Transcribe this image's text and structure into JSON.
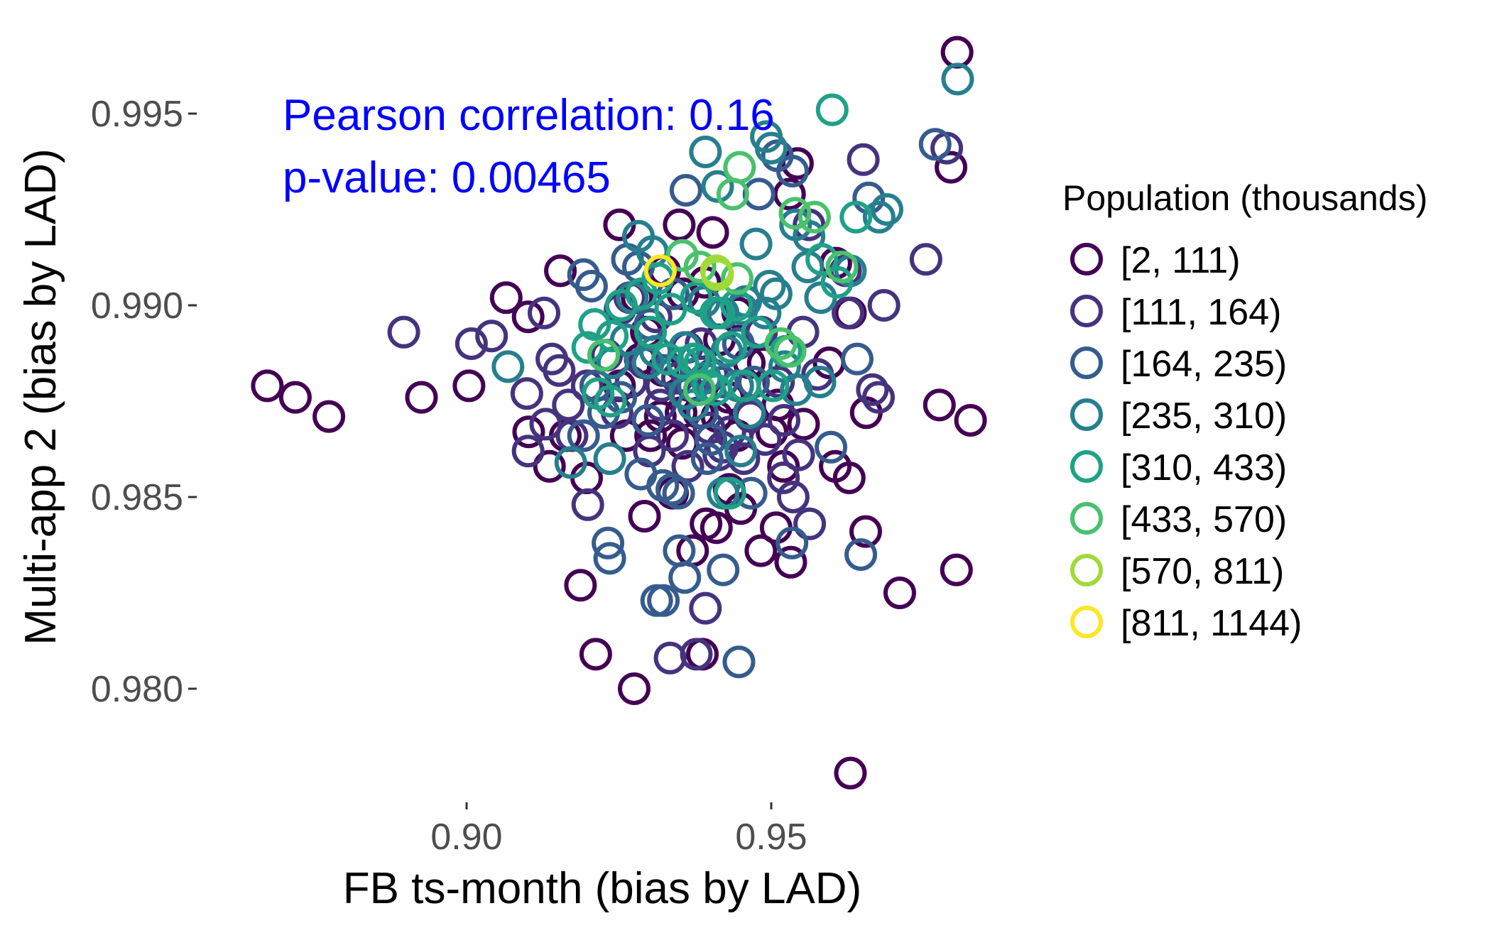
{
  "chart_data": {
    "type": "scatter",
    "title": "",
    "xlabel": "FB ts-month (bias by LAD)",
    "ylabel": "Multi-app 2 (bias by LAD)",
    "xlim": [
      0.862,
      0.988
    ],
    "ylim": [
      0.9765,
      0.9978
    ],
    "x_ticks": [
      0.9,
      0.95
    ],
    "x_tick_labels": [
      "0.90",
      "0.95"
    ],
    "y_ticks": [
      0.98,
      0.985,
      0.99,
      0.995
    ],
    "y_tick_labels": [
      "0.980",
      "0.985",
      "0.990",
      "0.995"
    ],
    "grid": false,
    "legend_position": "right",
    "annotation": {
      "line1": "Pearson correlation:  0.16",
      "line2": "p-value:  0.00465",
      "color": "#0000ff"
    },
    "legend": {
      "title": "Population (thousands)",
      "position": "right"
    },
    "series": [
      {
        "name": "[2, 111)",
        "color": "#440154",
        "points": [
          [
            0.9805,
            0.9966
          ],
          [
            0.9795,
            0.9936
          ],
          [
            0.8673,
            0.9879
          ],
          [
            0.8719,
            0.9876
          ],
          [
            0.8774,
            0.9871
          ],
          [
            0.8926,
            0.9876
          ],
          [
            0.9004,
            0.9879
          ],
          [
            0.9065,
            0.9902
          ],
          [
            0.9101,
            0.9897
          ],
          [
            0.9154,
            0.9909
          ],
          [
            0.9102,
            0.9867
          ],
          [
            0.9162,
            0.9866
          ],
          [
            0.9136,
            0.9858
          ],
          [
            0.9197,
            0.9855
          ],
          [
            0.9187,
            0.9827
          ],
          [
            0.9212,
            0.9809
          ],
          [
            0.9251,
            0.9921
          ],
          [
            0.9285,
            0.9886
          ],
          [
            0.9292,
            0.9845
          ],
          [
            0.9302,
            0.9866
          ],
          [
            0.9325,
            0.9909
          ],
          [
            0.9338,
            0.9851
          ],
          [
            0.9349,
            0.9921
          ],
          [
            0.9355,
            0.9903
          ],
          [
            0.9371,
            0.9879
          ],
          [
            0.9381,
            0.9872
          ],
          [
            0.9404,
            0.9919
          ],
          [
            0.9415,
            0.9891
          ],
          [
            0.9431,
            0.9852
          ],
          [
            0.9444,
            0.9866
          ],
          [
            0.945,
            0.9847
          ],
          [
            0.9393,
            0.9843
          ],
          [
            0.941,
            0.9842
          ],
          [
            0.9371,
            0.9836
          ],
          [
            0.9387,
            0.9809
          ],
          [
            0.9275,
            0.98
          ],
          [
            0.9483,
            0.9836
          ],
          [
            0.9508,
            0.9842
          ],
          [
            0.952,
            0.9858
          ],
          [
            0.9532,
            0.9833
          ],
          [
            0.9553,
            0.9869
          ],
          [
            0.9595,
            0.9885
          ],
          [
            0.9605,
            0.9858
          ],
          [
            0.9628,
            0.9855
          ],
          [
            0.963,
            0.9898
          ],
          [
            0.9606,
            0.9911
          ],
          [
            0.953,
            0.9929
          ],
          [
            0.9543,
            0.9937
          ],
          [
            0.9656,
            0.9872
          ],
          [
            0.9655,
            0.9841
          ],
          [
            0.9711,
            0.9825
          ],
          [
            0.9776,
            0.9874
          ],
          [
            0.9804,
            0.9831
          ],
          [
            0.9827,
            0.987
          ],
          [
            0.963,
            0.9778
          ],
          [
            0.9352,
            0.9872
          ],
          [
            0.9318,
            0.9871
          ],
          [
            0.9322,
            0.9883
          ],
          [
            0.9411,
            0.9871
          ],
          [
            0.943,
            0.9876
          ],
          [
            0.9464,
            0.9885
          ],
          [
            0.9501,
            0.9867
          ],
          [
            0.9511,
            0.9874
          ],
          [
            0.9251,
            0.9879
          ],
          [
            0.928,
            0.9902
          ],
          [
            0.9295,
            0.9893
          ],
          [
            0.9391,
            0.9906
          ],
          [
            0.9445,
            0.9898
          ],
          [
            0.9354,
            0.9864
          ],
          [
            0.9487,
            0.9885
          ],
          [
            0.9262,
            0.9866
          ]
        ]
      },
      {
        "name": "[111, 164)",
        "color": "#46337e",
        "points": [
          [
            0.9788,
            0.9941
          ],
          [
            0.9651,
            0.9938
          ],
          [
            0.9754,
            0.9912
          ],
          [
            0.9666,
            0.9878
          ],
          [
            0.9676,
            0.9876
          ],
          [
            0.9685,
            0.99
          ],
          [
            0.9562,
            0.9921
          ],
          [
            0.9622,
            0.9909
          ],
          [
            0.8897,
            0.9893
          ],
          [
            0.9008,
            0.989
          ],
          [
            0.9041,
            0.9892
          ],
          [
            0.9127,
            0.9898
          ],
          [
            0.914,
            0.9886
          ],
          [
            0.9152,
            0.9883
          ],
          [
            0.9167,
            0.9874
          ],
          [
            0.9198,
            0.9879
          ],
          [
            0.9099,
            0.9877
          ],
          [
            0.913,
            0.9869
          ],
          [
            0.9173,
            0.9866
          ],
          [
            0.9101,
            0.9862
          ],
          [
            0.9199,
            0.9848
          ],
          [
            0.923,
            0.9887
          ],
          [
            0.9252,
            0.9899
          ],
          [
            0.9268,
            0.9902
          ],
          [
            0.9291,
            0.9885
          ],
          [
            0.9311,
            0.9897
          ],
          [
            0.932,
            0.9879
          ],
          [
            0.9338,
            0.9866
          ],
          [
            0.9362,
            0.9889
          ],
          [
            0.9385,
            0.989
          ],
          [
            0.9398,
            0.9868
          ],
          [
            0.942,
            0.9863
          ],
          [
            0.9432,
            0.9867
          ],
          [
            0.9455,
            0.986
          ],
          [
            0.949,
            0.9865
          ],
          [
            0.952,
            0.9855
          ],
          [
            0.9536,
            0.985
          ],
          [
            0.9563,
            0.9843
          ],
          [
            0.9334,
            0.9808
          ],
          [
            0.9377,
            0.9809
          ],
          [
            0.9392,
            0.9821
          ],
          [
            0.9484,
            0.9893
          ],
          [
            0.9521,
            0.987
          ],
          [
            0.9545,
            0.9861
          ],
          [
            0.9576,
            0.9882
          ],
          [
            0.9626,
            0.9898
          ],
          [
            0.9247,
            0.9872
          ],
          [
            0.927,
            0.988
          ],
          [
            0.93,
            0.9862
          ],
          [
            0.9403,
            0.9882
          ],
          [
            0.9466,
            0.9871
          ],
          [
            0.9512,
            0.988
          ],
          [
            0.9552,
            0.9893
          ],
          [
            0.9318,
            0.9874
          ],
          [
            0.9346,
            0.9881
          ],
          [
            0.9363,
            0.9858
          ],
          [
            0.9414,
            0.9861
          ]
        ]
      },
      {
        "name": "[164, 235)",
        "color": "#365c8d",
        "points": [
          [
            0.9769,
            0.9942
          ],
          [
            0.966,
            0.9928
          ],
          [
            0.9535,
            0.9935
          ],
          [
            0.951,
            0.9939
          ],
          [
            0.948,
            0.9929
          ],
          [
            0.936,
            0.993
          ],
          [
            0.9264,
            0.9912
          ],
          [
            0.9205,
            0.9905
          ],
          [
            0.9192,
            0.9908
          ],
          [
            0.9282,
            0.991
          ],
          [
            0.9301,
            0.9895
          ],
          [
            0.9339,
            0.9903
          ],
          [
            0.9212,
            0.9879
          ],
          [
            0.9192,
            0.9866
          ],
          [
            0.9225,
            0.9872
          ],
          [
            0.9253,
            0.9876
          ],
          [
            0.9298,
            0.987
          ],
          [
            0.933,
            0.9883
          ],
          [
            0.9361,
            0.9877
          ],
          [
            0.9286,
            0.9856
          ],
          [
            0.9322,
            0.9853
          ],
          [
            0.9337,
            0.9852
          ],
          [
            0.9348,
            0.9851
          ],
          [
            0.9372,
            0.9879
          ],
          [
            0.9387,
            0.9872
          ],
          [
            0.942,
            0.988
          ],
          [
            0.9401,
            0.9865
          ],
          [
            0.9358,
            0.9829
          ],
          [
            0.9349,
            0.9836
          ],
          [
            0.9323,
            0.9823
          ],
          [
            0.9312,
            0.9823
          ],
          [
            0.9395,
            0.986
          ],
          [
            0.9421,
            0.9831
          ],
          [
            0.9447,
            0.9807
          ],
          [
            0.9232,
            0.9838
          ],
          [
            0.9235,
            0.9834
          ],
          [
            0.9534,
            0.9838
          ],
          [
            0.9598,
            0.9863
          ],
          [
            0.9647,
            0.9835
          ],
          [
            0.9641,
            0.9886
          ],
          [
            0.9467,
            0.9851
          ],
          [
            0.9471,
            0.988
          ],
          [
            0.9446,
            0.989
          ]
        ]
      },
      {
        "name": "[235, 310)",
        "color": "#277f8e",
        "points": [
          [
            0.9806,
            0.9959
          ],
          [
            0.9492,
            0.9944
          ],
          [
            0.95,
            0.9941
          ],
          [
            0.9412,
            0.9931
          ],
          [
            0.9392,
            0.994
          ],
          [
            0.9475,
            0.9916
          ],
          [
            0.9508,
            0.9903
          ],
          [
            0.956,
            0.991
          ],
          [
            0.963,
            0.9909
          ],
          [
            0.9581,
            0.9902
          ],
          [
            0.9497,
            0.9905
          ],
          [
            0.9452,
            0.9899
          ],
          [
            0.9421,
            0.9898
          ],
          [
            0.939,
            0.9901
          ],
          [
            0.9358,
            0.9889
          ],
          [
            0.9305,
            0.9914
          ],
          [
            0.9282,
            0.9918
          ],
          [
            0.9272,
            0.9902
          ],
          [
            0.9262,
            0.9891
          ],
          [
            0.924,
            0.9885
          ],
          [
            0.931,
            0.9888
          ],
          [
            0.9298,
            0.9885
          ],
          [
            0.9375,
            0.9886
          ],
          [
            0.9392,
            0.9881
          ],
          [
            0.9372,
            0.9874
          ],
          [
            0.9358,
            0.9877
          ],
          [
            0.9427,
            0.9888
          ],
          [
            0.9445,
            0.9879
          ],
          [
            0.9458,
            0.9901
          ],
          [
            0.949,
            0.9898
          ],
          [
            0.9522,
            0.9884
          ],
          [
            0.9541,
            0.9878
          ],
          [
            0.958,
            0.988
          ],
          [
            0.9068,
            0.9884
          ],
          [
            0.9171,
            0.9859
          ],
          [
            0.9235,
            0.986
          ],
          [
            0.9421,
            0.9851
          ],
          [
            0.945,
            0.9862
          ],
          [
            0.9464,
            0.9872
          ],
          [
            0.954,
            0.9921
          ],
          [
            0.9562,
            0.9918
          ],
          [
            0.9677,
            0.9923
          ],
          [
            0.969,
            0.9925
          ]
        ]
      },
      {
        "name": "[310, 433)",
        "color": "#1fa187",
        "points": [
          [
            0.96,
            0.9951
          ],
          [
            0.9639,
            0.9923
          ],
          [
            0.9608,
            0.9906
          ],
          [
            0.9583,
            0.9912
          ],
          [
            0.9524,
            0.9888
          ],
          [
            0.9477,
            0.9893
          ],
          [
            0.9443,
            0.99
          ],
          [
            0.9409,
            0.9898
          ],
          [
            0.9377,
            0.9902
          ],
          [
            0.9335,
            0.9899
          ],
          [
            0.9314,
            0.9907
          ],
          [
            0.9287,
            0.9903
          ],
          [
            0.9254,
            0.99
          ],
          [
            0.9239,
            0.9892
          ],
          [
            0.921,
            0.9895
          ],
          [
            0.9199,
            0.9889
          ],
          [
            0.9216,
            0.9877
          ],
          [
            0.9236,
            0.9875
          ],
          [
            0.9302,
            0.9893
          ],
          [
            0.933,
            0.9886
          ],
          [
            0.9355,
            0.9885
          ],
          [
            0.9372,
            0.9886
          ],
          [
            0.9383,
            0.9885
          ],
          [
            0.9409,
            0.9878
          ],
          [
            0.9434,
            0.9889
          ],
          [
            0.9456,
            0.9879
          ],
          [
            0.9503,
            0.9879
          ],
          [
            0.9432,
            0.9851
          ],
          [
            0.9397,
            0.9879
          ],
          [
            0.9414,
            0.9898
          ]
        ]
      },
      {
        "name": "[433, 570)",
        "color": "#4ac16d",
        "points": [
          [
            0.9448,
            0.9936
          ],
          [
            0.9437,
            0.9929
          ],
          [
            0.9539,
            0.9924
          ],
          [
            0.9571,
            0.9923
          ],
          [
            0.9616,
            0.991
          ],
          [
            0.9516,
            0.989
          ],
          [
            0.9531,
            0.9888
          ],
          [
            0.9354,
            0.9913
          ],
          [
            0.9383,
            0.991
          ],
          [
            0.9444,
            0.9907
          ],
          [
            0.9225,
            0.9887
          ],
          [
            0.9382,
            0.9878
          ]
        ]
      },
      {
        "name": "[570, 811)",
        "color": "#a0da39",
        "points": [
          [
            0.941,
            0.9909
          ],
          [
            0.9412,
            0.9908
          ]
        ]
      },
      {
        "name": "[811, 1144)",
        "color": "#fde725",
        "points": [
          [
            0.9318,
            0.9909
          ]
        ]
      }
    ]
  }
}
